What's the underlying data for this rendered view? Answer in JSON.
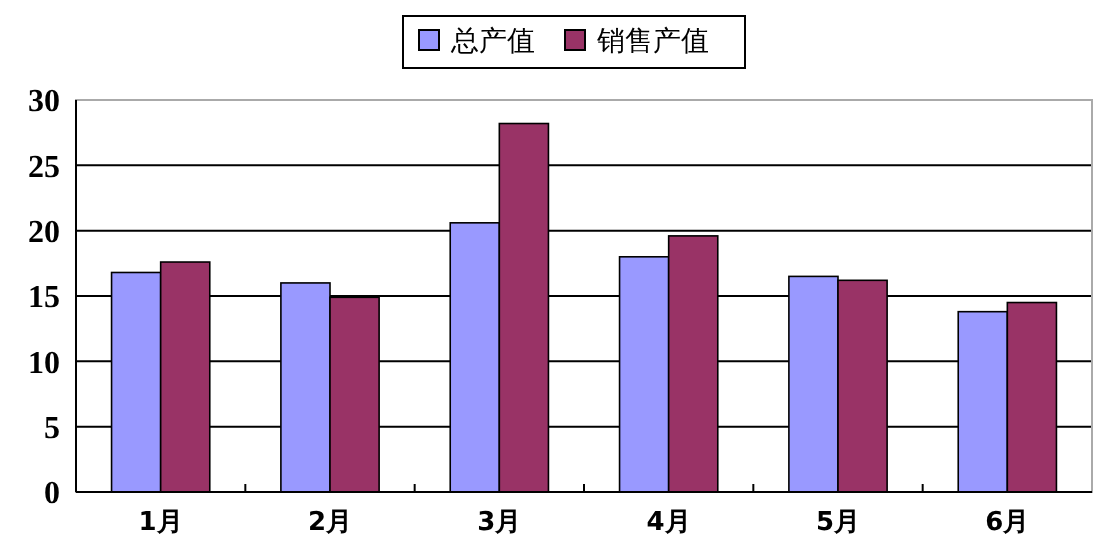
{
  "chart_data": {
    "type": "bar",
    "categories": [
      "1月",
      "2月",
      "3月",
      "4月",
      "5月",
      "6月"
    ],
    "series": [
      {
        "name": "总产值",
        "color": "#9999ff",
        "values": [
          16.8,
          16.0,
          20.6,
          18.0,
          16.5,
          13.8
        ]
      },
      {
        "name": "销售产值",
        "color": "#993366",
        "values": [
          17.6,
          14.9,
          28.2,
          19.6,
          16.2,
          14.5
        ]
      }
    ],
    "ylim": [
      0,
      30
    ],
    "yticks": [
      0,
      5,
      10,
      15,
      20,
      25,
      30
    ],
    "grid": "y",
    "legend": "top"
  }
}
